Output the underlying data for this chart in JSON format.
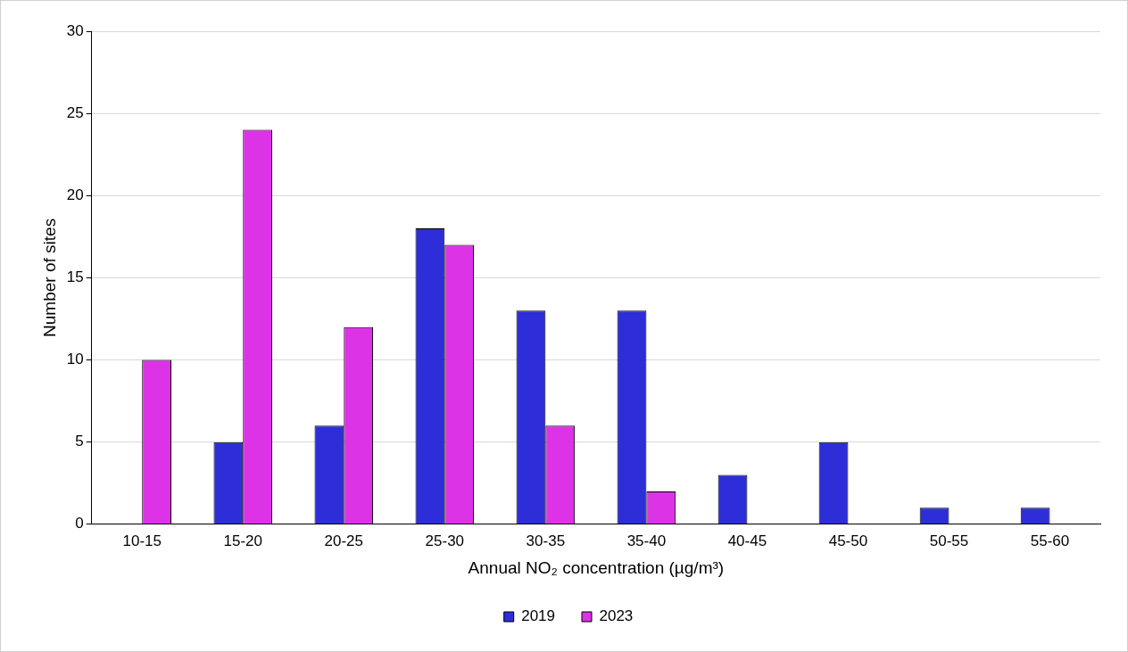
{
  "chart_data": {
    "type": "bar",
    "xlabel": "Annual NO₂ concentration (µg/m³)",
    "ylabel": "Number of sites",
    "categories": [
      "10-15",
      "15-20",
      "20-25",
      "25-30",
      "30-35",
      "35-40",
      "40-45",
      "45-50",
      "50-55",
      "55-60"
    ],
    "series": [
      {
        "name": "2019",
        "color": "#2e2ed8",
        "values": [
          0,
          5,
          6,
          18,
          13,
          13,
          3,
          5,
          1,
          1
        ]
      },
      {
        "name": "2023",
        "color": "#dd33e6",
        "values": [
          10,
          24,
          12,
          17,
          6,
          2,
          0,
          0,
          0,
          0
        ]
      }
    ],
    "ylim": [
      0,
      30
    ],
    "yticks": [
      0,
      5,
      10,
      15,
      20,
      25,
      30
    ],
    "grid": "y",
    "legend": "bottom"
  }
}
